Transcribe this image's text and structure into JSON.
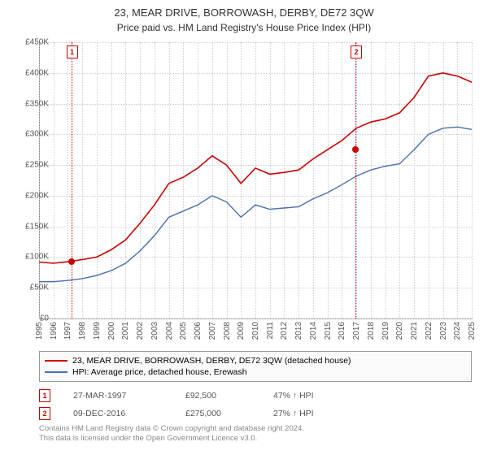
{
  "title": "23, MEAR DRIVE, BORROWASH, DERBY, DE72 3QW",
  "subtitle": "Price paid vs. HM Land Registry's House Price Index (HPI)",
  "chart": {
    "type": "line",
    "background_color": "#ffffff",
    "grid_color": "#cccccc",
    "ylim": [
      0,
      450000
    ],
    "ytick_step": 50000,
    "y_ticks": [
      "£0",
      "£50K",
      "£100K",
      "£150K",
      "£200K",
      "£250K",
      "£300K",
      "£350K",
      "£400K",
      "£450K"
    ],
    "x_years": [
      1995,
      1996,
      1997,
      1998,
      1999,
      2000,
      2001,
      2002,
      2003,
      2004,
      2005,
      2006,
      2007,
      2008,
      2009,
      2010,
      2011,
      2012,
      2013,
      2014,
      2015,
      2016,
      2017,
      2018,
      2019,
      2020,
      2021,
      2022,
      2023,
      2024,
      2025
    ],
    "series": [
      {
        "name": "23, MEAR DRIVE, BORROWASH, DERBY, DE72 3QW (detached house)",
        "color": "#cc0000",
        "line_width": 1.6,
        "data": [
          [
            1995,
            92000
          ],
          [
            1996,
            90000
          ],
          [
            1997,
            92500
          ],
          [
            1998,
            96000
          ],
          [
            1999,
            100000
          ],
          [
            2000,
            112000
          ],
          [
            2001,
            128000
          ],
          [
            2002,
            155000
          ],
          [
            2003,
            185000
          ],
          [
            2004,
            220000
          ],
          [
            2005,
            230000
          ],
          [
            2006,
            245000
          ],
          [
            2007,
            265000
          ],
          [
            2008,
            250000
          ],
          [
            2009,
            220000
          ],
          [
            2010,
            245000
          ],
          [
            2011,
            235000
          ],
          [
            2012,
            238000
          ],
          [
            2013,
            242000
          ],
          [
            2014,
            260000
          ],
          [
            2015,
            275000
          ],
          [
            2016,
            290000
          ],
          [
            2017,
            310000
          ],
          [
            2018,
            320000
          ],
          [
            2019,
            325000
          ],
          [
            2020,
            335000
          ],
          [
            2021,
            360000
          ],
          [
            2022,
            395000
          ],
          [
            2023,
            400000
          ],
          [
            2024,
            395000
          ],
          [
            2025,
            385000
          ]
        ]
      },
      {
        "name": "HPI: Average price, detached house, Erewash",
        "color": "#4a6db0",
        "line_width": 1.4,
        "data": [
          [
            1995,
            60000
          ],
          [
            1996,
            60000
          ],
          [
            1997,
            62000
          ],
          [
            1998,
            65000
          ],
          [
            1999,
            70000
          ],
          [
            2000,
            78000
          ],
          [
            2001,
            90000
          ],
          [
            2002,
            110000
          ],
          [
            2003,
            135000
          ],
          [
            2004,
            165000
          ],
          [
            2005,
            175000
          ],
          [
            2006,
            185000
          ],
          [
            2007,
            200000
          ],
          [
            2008,
            190000
          ],
          [
            2009,
            165000
          ],
          [
            2010,
            185000
          ],
          [
            2011,
            178000
          ],
          [
            2012,
            180000
          ],
          [
            2013,
            182000
          ],
          [
            2014,
            195000
          ],
          [
            2015,
            205000
          ],
          [
            2016,
            218000
          ],
          [
            2017,
            232000
          ],
          [
            2018,
            242000
          ],
          [
            2019,
            248000
          ],
          [
            2020,
            252000
          ],
          [
            2021,
            275000
          ],
          [
            2022,
            300000
          ],
          [
            2023,
            310000
          ],
          [
            2024,
            312000
          ],
          [
            2025,
            308000
          ]
        ]
      }
    ],
    "markers": [
      {
        "n": "1",
        "year": 1997.23,
        "price": 92500
      },
      {
        "n": "2",
        "year": 2016.94,
        "price": 275000
      }
    ]
  },
  "sales": [
    {
      "n": "1",
      "date": "27-MAR-1997",
      "price": "£92,500",
      "pct": "47% ↑ HPI"
    },
    {
      "n": "2",
      "date": "09-DEC-2016",
      "price": "£275,000",
      "pct": "27% ↑ HPI"
    }
  ],
  "footer": {
    "line1": "Contains HM Land Registry data © Crown copyright and database right 2024.",
    "line2": "This data is licensed under the Open Government Licence v3.0."
  }
}
